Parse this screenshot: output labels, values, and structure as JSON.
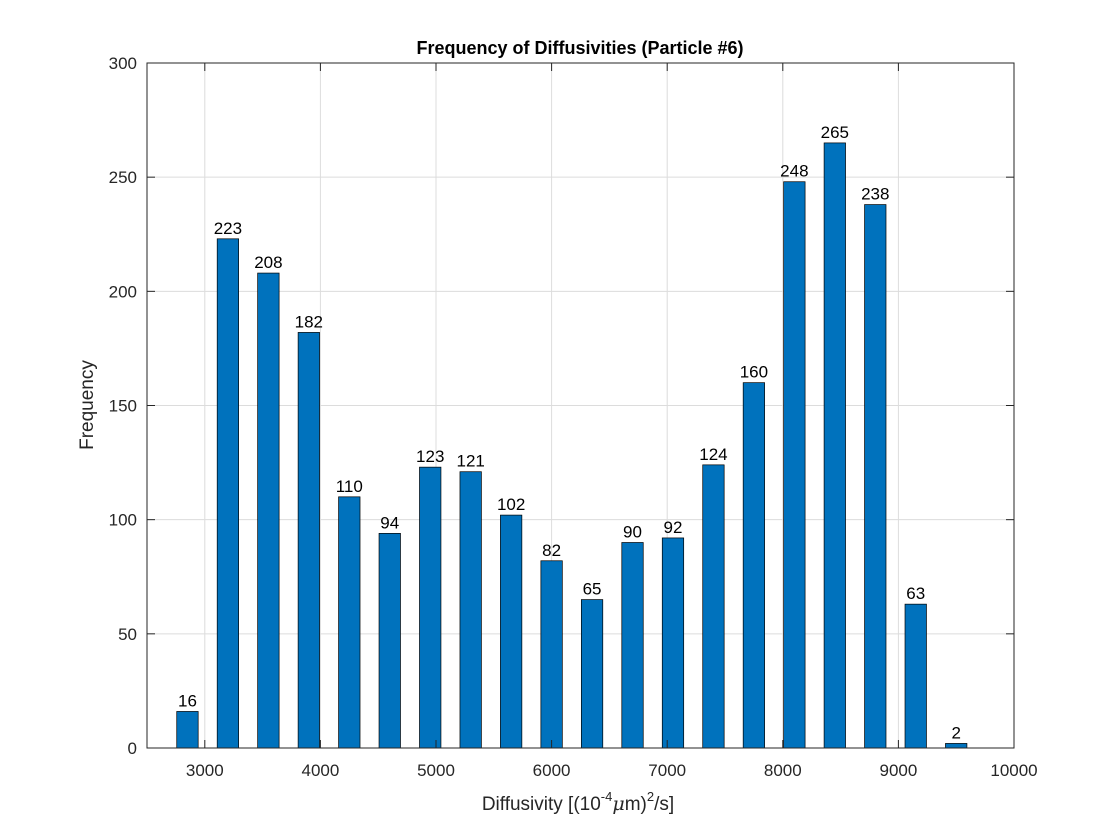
{
  "chart_data": {
    "type": "bar",
    "title": "Frequency of Diffusivities (Particle #6)",
    "xlabel": {
      "prefix": "Diffusivity [(10",
      "exponent": "-4",
      "greek": "μ",
      "middle": "m)",
      "exponent2": "2",
      "suffix": "/s]"
    },
    "ylabel": "Frequency",
    "xlim": [
      2500,
      10000
    ],
    "ylim": [
      0,
      300
    ],
    "xticks": [
      3000,
      4000,
      5000,
      6000,
      7000,
      8000,
      9000,
      10000
    ],
    "yticks": [
      0,
      50,
      100,
      150,
      200,
      250,
      300
    ],
    "grid": true,
    "bar_color": "#0072BD",
    "x": [
      2850,
      3200,
      3550,
      3900,
      4250,
      4600,
      4950,
      5300,
      5650,
      6000,
      6350,
      6700,
      7050,
      7400,
      7750,
      8100,
      8450,
      8800,
      9150,
      9500
    ],
    "values": [
      16,
      223,
      208,
      182,
      110,
      94,
      123,
      121,
      102,
      82,
      65,
      90,
      92,
      124,
      160,
      248,
      265,
      238,
      63,
      2
    ],
    "data_labels": [
      "16",
      "223",
      "208",
      "182",
      "110",
      "94",
      "123",
      "121",
      "102",
      "82",
      "65",
      "90",
      "92",
      "124",
      "160",
      "248",
      "265",
      "238",
      "63",
      "2"
    ]
  }
}
